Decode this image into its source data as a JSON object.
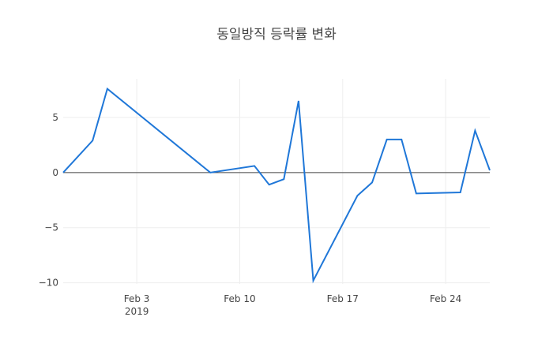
{
  "chart_data": {
    "type": "line",
    "title": "동일방직 등락률 변화",
    "x": [
      "2019-01-29",
      "2019-01-31",
      "2019-02-01",
      "2019-02-08",
      "2019-02-11",
      "2019-02-12",
      "2019-02-13",
      "2019-02-14",
      "2019-02-15",
      "2019-02-18",
      "2019-02-19",
      "2019-02-20",
      "2019-02-21",
      "2019-02-22",
      "2019-02-25",
      "2019-02-26",
      "2019-02-27"
    ],
    "values": [
      0,
      2.9,
      7.6,
      0,
      0.6,
      -1.1,
      -0.6,
      6.5,
      -9.8,
      -2.1,
      -0.9,
      3.0,
      3.0,
      -1.9,
      -1.8,
      3.8,
      0.2
    ],
    "color": "#1f77d8",
    "xlim": [
      "2019-01-29",
      "2019-02-27"
    ],
    "xticks": [
      {
        "value": "2019-02-03",
        "label": "Feb 3\n2019"
      },
      {
        "value": "2019-02-10",
        "label": "Feb 10"
      },
      {
        "value": "2019-02-17",
        "label": "Feb 17"
      },
      {
        "value": "2019-02-24",
        "label": "Feb 24"
      }
    ],
    "ylim": [
      -10.1,
      8.5
    ],
    "yticks": [
      {
        "value": -10,
        "label": "−10"
      },
      {
        "value": -5,
        "label": "−5"
      },
      0,
      5
    ],
    "grid": true
  }
}
